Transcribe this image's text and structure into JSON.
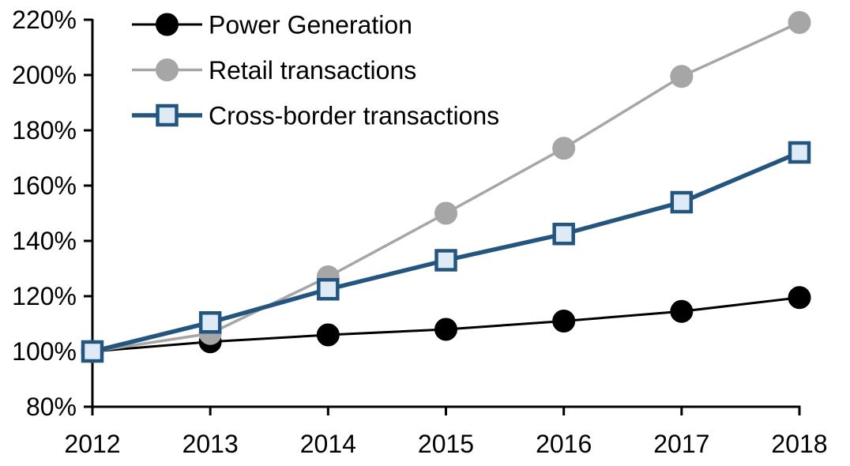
{
  "chart_data": {
    "type": "line",
    "title": "",
    "xlabel": "",
    "ylabel": "",
    "grid": false,
    "legend_position": "top-left-inside",
    "x_labels": [
      "2012",
      "2013",
      "2014",
      "2015",
      "2016",
      "2017",
      "2018"
    ],
    "y_ticks": [
      80,
      100,
      120,
      140,
      160,
      180,
      200,
      220
    ],
    "y_tick_labels": [
      "80%",
      "100%",
      "120%",
      "140%",
      "160%",
      "180%",
      "200%",
      "220%"
    ],
    "ylim": [
      80,
      220
    ],
    "axis_color": "#000000",
    "series": [
      {
        "name": "Power Generation",
        "color": "#000000",
        "marker": "circle",
        "marker_fill": "#000000",
        "marker_stroke": "#000000",
        "line_width": 3,
        "values": [
          100,
          103.5,
          106,
          108,
          111,
          114.5,
          119.5
        ]
      },
      {
        "name": "Retail transactions",
        "color": "#A6A6A6",
        "marker": "circle",
        "marker_fill": "#A6A6A6",
        "marker_stroke": "#A6A6A6",
        "line_width": 3.5,
        "values": [
          100,
          106.5,
          127,
          150,
          173.5,
          199.5,
          219
        ]
      },
      {
        "name": "Cross-border transactions",
        "color": "#24557F",
        "marker": "square",
        "marker_fill": "#DEEAF6",
        "marker_stroke": "#24557F",
        "line_width": 5.5,
        "values": [
          100,
          110.5,
          122.5,
          133,
          142.5,
          154,
          172
        ]
      }
    ]
  }
}
